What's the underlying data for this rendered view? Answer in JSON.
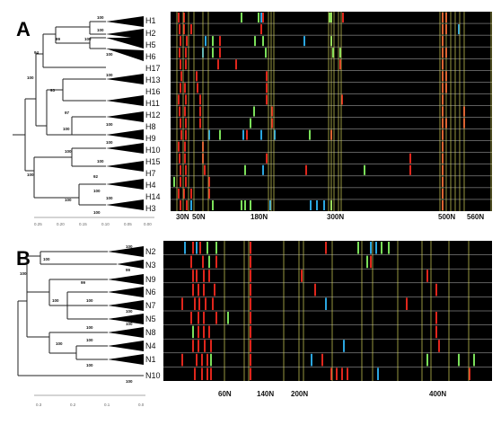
{
  "figure": {
    "panels": [
      {
        "letter": "A",
        "leaves": [
          "H1",
          "H2",
          "H5",
          "H6",
          "H17",
          "H13",
          "H16",
          "H11",
          "H12",
          "H8",
          "H9",
          "H10",
          "H15",
          "H7",
          "H4",
          "H14",
          "H3"
        ],
        "bootstrap": [
          "100",
          "100",
          "99",
          "100",
          "94",
          "100",
          "100",
          "93",
          "100",
          "97",
          "100",
          "100",
          "100",
          "100",
          "100",
          "92",
          "100",
          "100",
          "100",
          "100",
          "100"
        ],
        "axis_ticks": [
          "0.25",
          "0.20",
          "0.15",
          "0.10",
          "0.05",
          "0.00"
        ],
        "positions": [
          "30N",
          "50N",
          "180N",
          "300N",
          "500N",
          "560N"
        ]
      },
      {
        "letter": "B",
        "leaves": [
          "N2",
          "N3",
          "N9",
          "N6",
          "N7",
          "N5",
          "N8",
          "N4",
          "N1",
          "N10"
        ],
        "bootstrap": [
          "100",
          "100",
          "99",
          "99",
          "100",
          "100",
          "100",
          "100",
          "100",
          "100",
          "100",
          "100",
          "100",
          "100"
        ],
        "axis_ticks": [
          "0.3",
          "0.2",
          "0.1",
          "0.0"
        ],
        "positions": [
          "60N",
          "140N",
          "200N",
          "400N"
        ]
      }
    ]
  },
  "colors": {
    "background": "#000000",
    "row_lines": "#bdbdbd",
    "guide_lines": "#d6d65a",
    "red": "#e0261c",
    "green": "#7be05a",
    "blue": "#2aa6e0"
  }
}
